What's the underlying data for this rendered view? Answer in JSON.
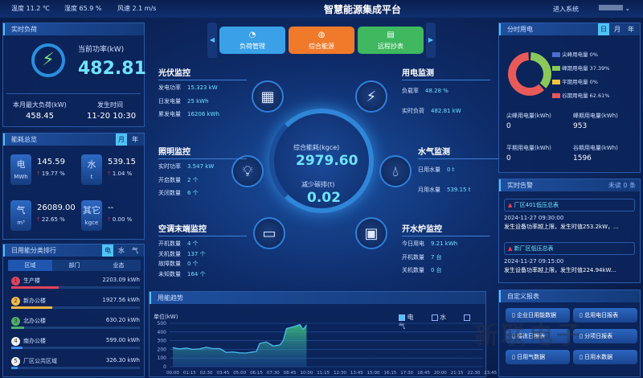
{
  "topbar": {
    "weather": [
      "温度 11.2 ℃",
      "湿度 65.9 %",
      "风速 2.1 m/s"
    ],
    "title": "智慧能源集成平台",
    "enter_system": "进入系统"
  },
  "realtime_load": {
    "title": "实时负荷",
    "power_label": "当前功率(kW)",
    "power_value": "482.81",
    "max_label": "本月最大负荷(kW)",
    "max_value": "458.45",
    "time_label": "发生时间",
    "time_value": "11-20 10:30"
  },
  "overview": {
    "title": "能耗总览",
    "tabs": [
      "月",
      "年"
    ],
    "active_tab": "月",
    "items": [
      {
        "name": "电",
        "unit": "MWh",
        "value": "145.59",
        "change": "19.77 %"
      },
      {
        "name": "水",
        "unit": "t",
        "value": "539.15",
        "change": "1.04 %"
      },
      {
        "name": "气",
        "unit": "m³",
        "value": "26089.00",
        "change": "22.65 %"
      },
      {
        "name": "其它",
        "unit": "kgce",
        "value": "--",
        "change": "0.00 %"
      }
    ]
  },
  "ranking": {
    "title": "日用能分类排行",
    "tabs": [
      "电",
      "水",
      "气"
    ],
    "active_tab": "电",
    "subtabs": [
      "区域",
      "部门",
      "业态"
    ],
    "items": [
      {
        "rank": "1",
        "name": "生产楼",
        "value": "2203.09 kWh",
        "fill": 0.37,
        "color": "#e0445e"
      },
      {
        "rank": "2",
        "name": "新办公楼",
        "value": "1927.56 kWh",
        "fill": 0.32,
        "color": "#f5b942"
      },
      {
        "rank": "3",
        "name": "北办公楼",
        "value": "630.20 kWh",
        "fill": 0.1,
        "color": "#4caf6a"
      },
      {
        "rank": "4",
        "name": "南办公楼",
        "value": "599.00 kWh",
        "fill": 0.09,
        "color": "#3d8ee8"
      },
      {
        "rank": "5",
        "name": "厂区公共区域",
        "value": "326.30 kWh",
        "fill": 0.05,
        "color": "#3d8ee8"
      }
    ]
  },
  "nav": {
    "buttons": [
      {
        "label": "负荷管理",
        "color": "#3aa0e8",
        "icon": "gauge-icon"
      },
      {
        "label": "综合能源",
        "color": "#f07a2a",
        "icon": "globe-icon"
      },
      {
        "label": "远程抄表",
        "color": "#3fb860",
        "icon": "meter-icon"
      }
    ]
  },
  "pv": {
    "title": "光伏监控",
    "rows": [
      [
        "发电功率",
        "15.323 kW"
      ],
      [
        "日发电量",
        "25 kWh"
      ],
      [
        "累发电量",
        "16206 kWh"
      ]
    ]
  },
  "power": {
    "title": "用电监测",
    "rows": [
      [
        "负载率",
        "48.28 %"
      ],
      [
        "实时负荷",
        "482.81 kW"
      ]
    ]
  },
  "lighting": {
    "title": "照明监控",
    "rows": [
      [
        "实时功率",
        "3.547 kW"
      ],
      [
        "开启数量",
        "2 个"
      ],
      [
        "关闭数量",
        "6 个"
      ]
    ]
  },
  "water": {
    "title": "水气监测",
    "rows": [
      [
        "日用水量",
        "0 t"
      ],
      [
        "月用水量",
        "539.15 t"
      ]
    ]
  },
  "ac": {
    "title": "空调末端监控",
    "rows": [
      [
        "开机数量",
        "4 个"
      ],
      [
        "关机数量",
        "137 个"
      ],
      [
        "故障数量",
        "0 个"
      ],
      [
        "未知数量",
        "164 个"
      ]
    ]
  },
  "boiler": {
    "title": "开水炉监控",
    "rows": [
      [
        "今日用电",
        "9.21 kWh"
      ],
      [
        "开机数量",
        "7 台"
      ],
      [
        "关机数量",
        "0 台"
      ]
    ]
  },
  "center": {
    "energy_label": "综合能耗(kgce)",
    "energy_value": "2979.60",
    "carbon_label": "减少碳排(t)",
    "carbon_value": "0.02"
  },
  "tou": {
    "title": "分时用电",
    "tabs": [
      "日",
      "月",
      "年"
    ],
    "active_tab": "日",
    "legend": [
      {
        "name": "尖峰用电量",
        "pct": "0%",
        "value": 0,
        "color": "#4a6fd0"
      },
      {
        "name": "峰期用电量",
        "pct": "37.39%",
        "value": 37.39,
        "color": "#8bc85a"
      },
      {
        "name": "平期用电量",
        "pct": "0%",
        "value": 0,
        "color": "#f5c242"
      },
      {
        "name": "谷期用电量",
        "pct": "62.61%",
        "value": 62.61,
        "color": "#e85a5a"
      }
    ],
    "stats": [
      {
        "label": "尖峰用电量(kWh)",
        "value": "0"
      },
      {
        "label": "峰期用电量(kWh)",
        "value": "953"
      },
      {
        "label": "平期用电量(kWh)",
        "value": "0"
      },
      {
        "label": "谷期用电量(kWh)",
        "value": "1596"
      }
    ]
  },
  "alerts": {
    "title": "实时告警",
    "unread": "未读 0 条",
    "items": [
      {
        "name": "厂区401低压总表",
        "time": "2024-11-27 09:30:00",
        "msg": "发生设备功率越上限，发生时值253.2kW，..."
      },
      {
        "name": "新厂区低压总表",
        "time": "2024-11-27 09:15:00",
        "msg": "发生设备功率越上限，发生时值224.94kW..."
      }
    ]
  },
  "reports": {
    "title": "自定义报表",
    "buttons": [
      "企业日用能数据",
      "总用电日报表",
      "楼栋日报表",
      "分项日报表",
      "日用气数据",
      "日用水数据"
    ]
  },
  "trend": {
    "title": "用能趋势",
    "legend": [
      {
        "label": "电",
        "checked": true
      },
      {
        "label": "水",
        "checked": false
      },
      {
        "label": "气",
        "checked": false
      }
    ]
  },
  "chart_data": {
    "type": "area",
    "ylabel": "单位(kW)",
    "ylim": [
      0,
      500
    ],
    "yticks": [
      "0",
      "100",
      "200",
      "300",
      "400",
      "500"
    ],
    "xticks": [
      "00:00",
      "01:15",
      "02:30",
      "03:45",
      "05:00",
      "06:15",
      "07:30",
      "08:45",
      "10:00",
      "11:15",
      "12:30",
      "13:45",
      "15:00",
      "16:15",
      "17:30",
      "18:45",
      "20:00",
      "21:15",
      "22:30",
      "23:45"
    ],
    "series": [
      {
        "name": "电",
        "color": "#4fc3f7",
        "x": [
          "00:00",
          "00:30",
          "01:00",
          "01:30",
          "02:00",
          "02:30",
          "03:00",
          "03:30",
          "04:00",
          "04:30",
          "05:00",
          "05:30",
          "06:00",
          "06:15",
          "06:30",
          "07:00",
          "07:30",
          "08:00",
          "08:15",
          "08:30",
          "09:00",
          "09:30",
          "09:45",
          "10:00"
        ],
        "values": [
          220,
          205,
          215,
          200,
          205,
          225,
          210,
          210,
          165,
          170,
          160,
          158,
          170,
          175,
          270,
          285,
          240,
          250,
          300,
          440,
          460,
          485,
          430,
          480
        ]
      }
    ],
    "grid": true
  },
  "watermark": "新联电子"
}
